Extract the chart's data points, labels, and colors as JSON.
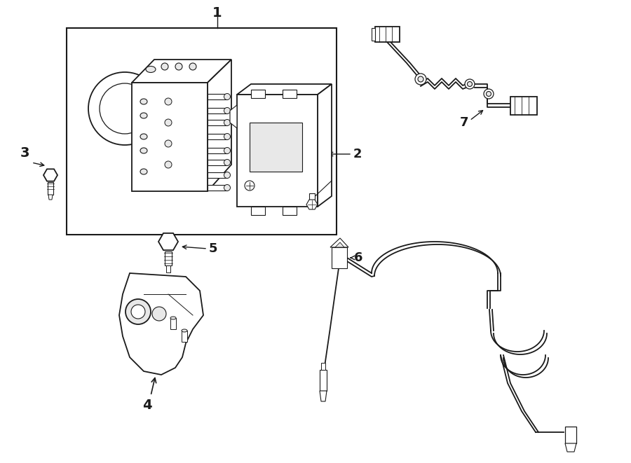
{
  "bg_color": "#ffffff",
  "line_color": "#1a1a1a",
  "gray_fill": "#e8e8e8",
  "white": "#ffffff",
  "fig_w": 9.0,
  "fig_h": 6.61,
  "dpi": 100
}
